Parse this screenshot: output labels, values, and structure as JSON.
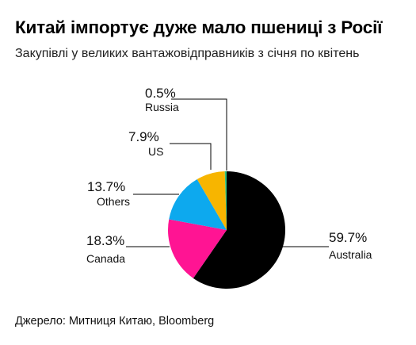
{
  "title": "Китай імпортує дуже мало пшениці з Росії",
  "subtitle": "Закупівлі у великих вантажовідправників з січня по квітень",
  "source": "Джерело: Митниця Китаю, Bloomberg",
  "chart_data": {
    "type": "pie",
    "title": "Китай імпортує дуже мало пшениці з Росії",
    "subtitle": "Закупівлі у великих вантажовідправників з січня по квітень",
    "unit": "%",
    "slices": [
      {
        "name": "Australia",
        "value": 59.7,
        "label": "59.7%",
        "color": "#000000"
      },
      {
        "name": "Canada",
        "value": 18.3,
        "label": "18.3%",
        "color": "#ff1493"
      },
      {
        "name": "Others",
        "value": 13.7,
        "label": "13.7%",
        "color": "#0da9ee"
      },
      {
        "name": "US",
        "value": 7.9,
        "label": "7.9%",
        "color": "#f7b500"
      },
      {
        "name": "Russia",
        "value": 0.5,
        "label": "0.5%",
        "color": "#2ec27e"
      }
    ],
    "legend": "callout labels",
    "source": "Джерело: Митниця Китаю, Bloomberg"
  }
}
